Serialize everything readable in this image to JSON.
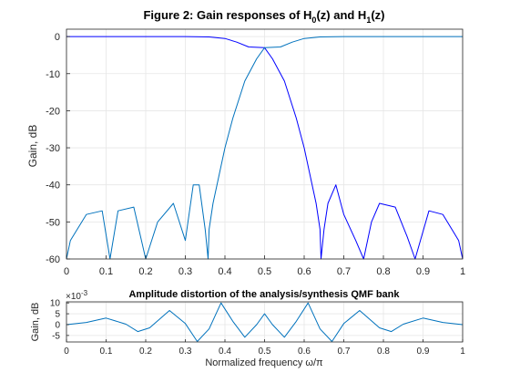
{
  "chart_data": [
    {
      "type": "line",
      "title_main": "Figure 2: Gain responses of H",
      "title_sub0": "0",
      "title_mid": "(z) and H",
      "title_sub1": "1",
      "title_end": "(z)",
      "xlabel": "",
      "ylabel": "Gain, dB",
      "xlim": [
        0,
        1
      ],
      "ylim": [
        -60,
        2
      ],
      "xticks": [
        "0",
        "0.1",
        "0.2",
        "0.3",
        "0.4",
        "0.5",
        "0.6",
        "0.7",
        "0.8",
        "0.9",
        "1"
      ],
      "yticks": [
        "0",
        "-10",
        "-20",
        "-30",
        "-40",
        "-50",
        "-60"
      ],
      "grid": true,
      "colors": {
        "H0": "#0000ff",
        "H1": "#0072bd"
      },
      "series": [
        {
          "name": "",
          "color": "#0000ff",
          "x": [
            0,
            0.3,
            0.36,
            0.4,
            0.43,
            0.46,
            0.5,
            0.52,
            0.55,
            0.58,
            0.6,
            0.63,
            0.64,
            0.6425,
            0.65,
            0.66,
            0.68,
            0.7,
            0.73,
            0.75,
            0.77,
            0.79,
            0.83,
            0.86,
            0.88,
            0.915,
            0.95,
            0.99,
            1.0
          ],
          "y": [
            0,
            0,
            -0.1,
            -0.5,
            -1.5,
            -2.8,
            -3.0,
            -6,
            -12,
            -22,
            -30,
            -45,
            -52,
            -60,
            -52,
            -45,
            -40,
            -48,
            -55,
            -60,
            -50,
            -45,
            -46,
            -54,
            -60,
            -47,
            -48,
            -55,
            -60
          ]
        },
        {
          "name": "",
          "color": "#0072bd",
          "x": [
            0,
            0.01,
            0.05,
            0.09,
            0.11,
            0.13,
            0.17,
            0.2,
            0.23,
            0.27,
            0.3,
            0.32,
            0.335,
            0.35,
            0.3575,
            0.36,
            0.37,
            0.4,
            0.42,
            0.45,
            0.48,
            0.5,
            0.54,
            0.57,
            0.6,
            0.64,
            0.7,
            1.0
          ],
          "y": [
            -60,
            -55,
            -48,
            -47,
            -60,
            -47,
            -46,
            -60,
            -50,
            -45,
            -55,
            -40,
            -40,
            -52,
            -60,
            -52,
            -45,
            -30,
            -22,
            -12,
            -6,
            -3.0,
            -2.8,
            -1.5,
            -0.5,
            -0.1,
            0,
            0
          ]
        }
      ]
    },
    {
      "type": "line",
      "title": "Amplitude distortion of the analysis/synthesis QMF bank",
      "xlabel": "Normalized frequency ω/π",
      "ylabel": "Gain, dB",
      "y_exponent": "×10",
      "y_exponent_power": "-3",
      "xlim": [
        0,
        1
      ],
      "ylim": [
        -8,
        10.5
      ],
      "xticks": [
        "0",
        "0.1",
        "0.2",
        "0.3",
        "0.4",
        "0.5",
        "0.6",
        "0.7",
        "0.8",
        "0.9",
        "1"
      ],
      "yticks": [
        "10",
        "5",
        "0",
        "-5"
      ],
      "grid": true,
      "series": [
        {
          "name": "",
          "color": "#0072bd",
          "x": [
            0,
            0.05,
            0.1,
            0.15,
            0.18,
            0.21,
            0.26,
            0.3,
            0.33,
            0.36,
            0.39,
            0.42,
            0.45,
            0.48,
            0.5,
            0.52,
            0.55,
            0.58,
            0.61,
            0.64,
            0.67,
            0.7,
            0.74,
            0.79,
            0.82,
            0.85,
            0.9,
            0.95,
            1.0
          ],
          "y": [
            0,
            1.0,
            3.0,
            0.2,
            -3.2,
            -1.5,
            6.5,
            0.5,
            -7.8,
            -2.0,
            10.0,
            1.5,
            -5.8,
            0.0,
            5.0,
            0.0,
            -5.8,
            1.5,
            10.0,
            -2.0,
            -7.8,
            0.5,
            6.5,
            -1.5,
            -3.2,
            0.2,
            3.0,
            1.0,
            0
          ]
        }
      ]
    }
  ]
}
